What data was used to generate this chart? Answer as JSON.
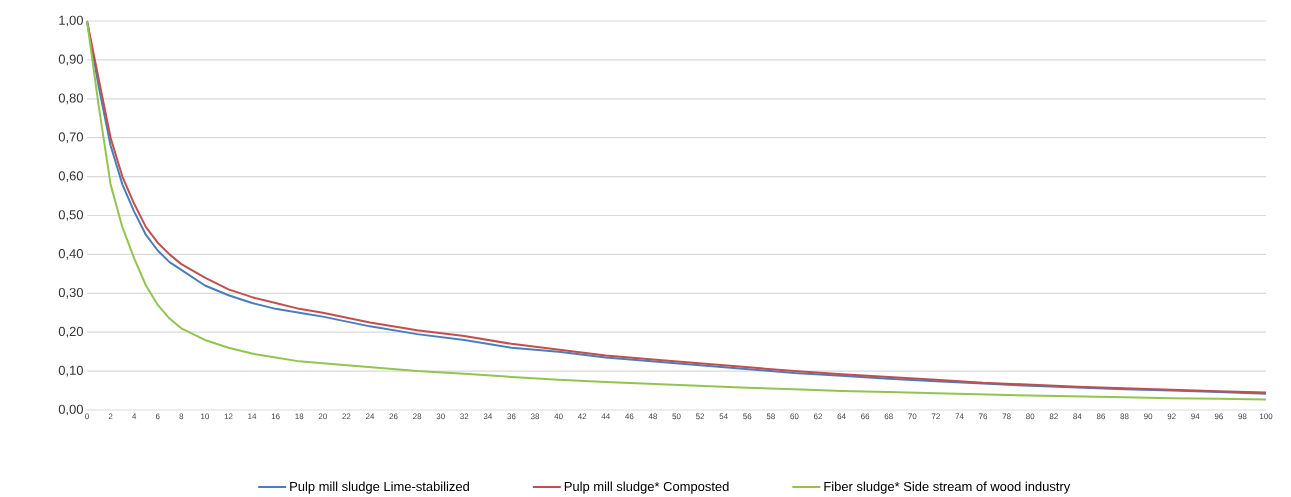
{
  "chart_data": {
    "type": "line",
    "xlim": [
      0,
      100
    ],
    "ylim": [
      0,
      1
    ],
    "xticks": [
      0,
      2,
      4,
      6,
      8,
      10,
      12,
      14,
      16,
      18,
      20,
      22,
      24,
      26,
      28,
      30,
      32,
      34,
      36,
      38,
      40,
      42,
      44,
      46,
      48,
      50,
      52,
      54,
      56,
      58,
      60,
      62,
      64,
      66,
      68,
      70,
      72,
      74,
      76,
      78,
      80,
      82,
      84,
      86,
      88,
      90,
      92,
      94,
      96,
      98,
      100
    ],
    "yticks": [
      {
        "value": 0,
        "label": "0,00"
      },
      {
        "value": 0.1,
        "label": "0,10"
      },
      {
        "value": 0.2,
        "label": "0,20"
      },
      {
        "value": 0.3,
        "label": "0,30"
      },
      {
        "value": 0.4,
        "label": "0,40"
      },
      {
        "value": 0.5,
        "label": "0,50"
      },
      {
        "value": 0.6,
        "label": "0,60"
      },
      {
        "value": 0.7,
        "label": "0,70"
      },
      {
        "value": 0.8,
        "label": "0,80"
      },
      {
        "value": 0.9,
        "label": "0,90"
      },
      {
        "value": 1,
        "label": "1,00"
      }
    ],
    "grid": "y",
    "legend": "bottom",
    "marker": "none",
    "line_style": "solid",
    "x": [
      0,
      1,
      2,
      3,
      4,
      5,
      6,
      7,
      8,
      10,
      12,
      14,
      16,
      18,
      20,
      24,
      28,
      32,
      36,
      40,
      44,
      48,
      52,
      56,
      60,
      64,
      68,
      72,
      76,
      80,
      84,
      88,
      92,
      96,
      100
    ],
    "series": [
      {
        "name": "Pulp mill sludge Lime-stabilized",
        "color": "#4a7ebb",
        "values": [
          1.0,
          0.83,
          0.68,
          0.58,
          0.51,
          0.45,
          0.41,
          0.38,
          0.36,
          0.32,
          0.295,
          0.275,
          0.26,
          0.25,
          0.24,
          0.215,
          0.195,
          0.18,
          0.16,
          0.15,
          0.135,
          0.125,
          0.115,
          0.105,
          0.095,
          0.088,
          0.08,
          0.074,
          0.068,
          0.062,
          0.058,
          0.053,
          0.05,
          0.046,
          0.042
        ]
      },
      {
        "name": "Pulp mill sludge* Composted",
        "color": "#c0504d",
        "values": [
          1.0,
          0.85,
          0.7,
          0.6,
          0.53,
          0.47,
          0.43,
          0.4,
          0.375,
          0.34,
          0.31,
          0.29,
          0.275,
          0.26,
          0.25,
          0.225,
          0.205,
          0.19,
          0.17,
          0.155,
          0.14,
          0.13,
          0.12,
          0.11,
          0.1,
          0.092,
          0.085,
          0.078,
          0.07,
          0.065,
          0.06,
          0.056,
          0.052,
          0.048,
          0.045
        ]
      },
      {
        "name": "Fiber sludge* Side stream of wood industry",
        "color": "#92c550",
        "values": [
          1.0,
          0.78,
          0.58,
          0.47,
          0.39,
          0.32,
          0.27,
          0.235,
          0.21,
          0.18,
          0.16,
          0.145,
          0.135,
          0.125,
          0.12,
          0.11,
          0.1,
          0.093,
          0.085,
          0.078,
          0.072,
          0.067,
          0.062,
          0.057,
          0.053,
          0.049,
          0.046,
          0.043,
          0.04,
          0.037,
          0.035,
          0.033,
          0.03,
          0.029,
          0.027
        ]
      }
    ]
  }
}
